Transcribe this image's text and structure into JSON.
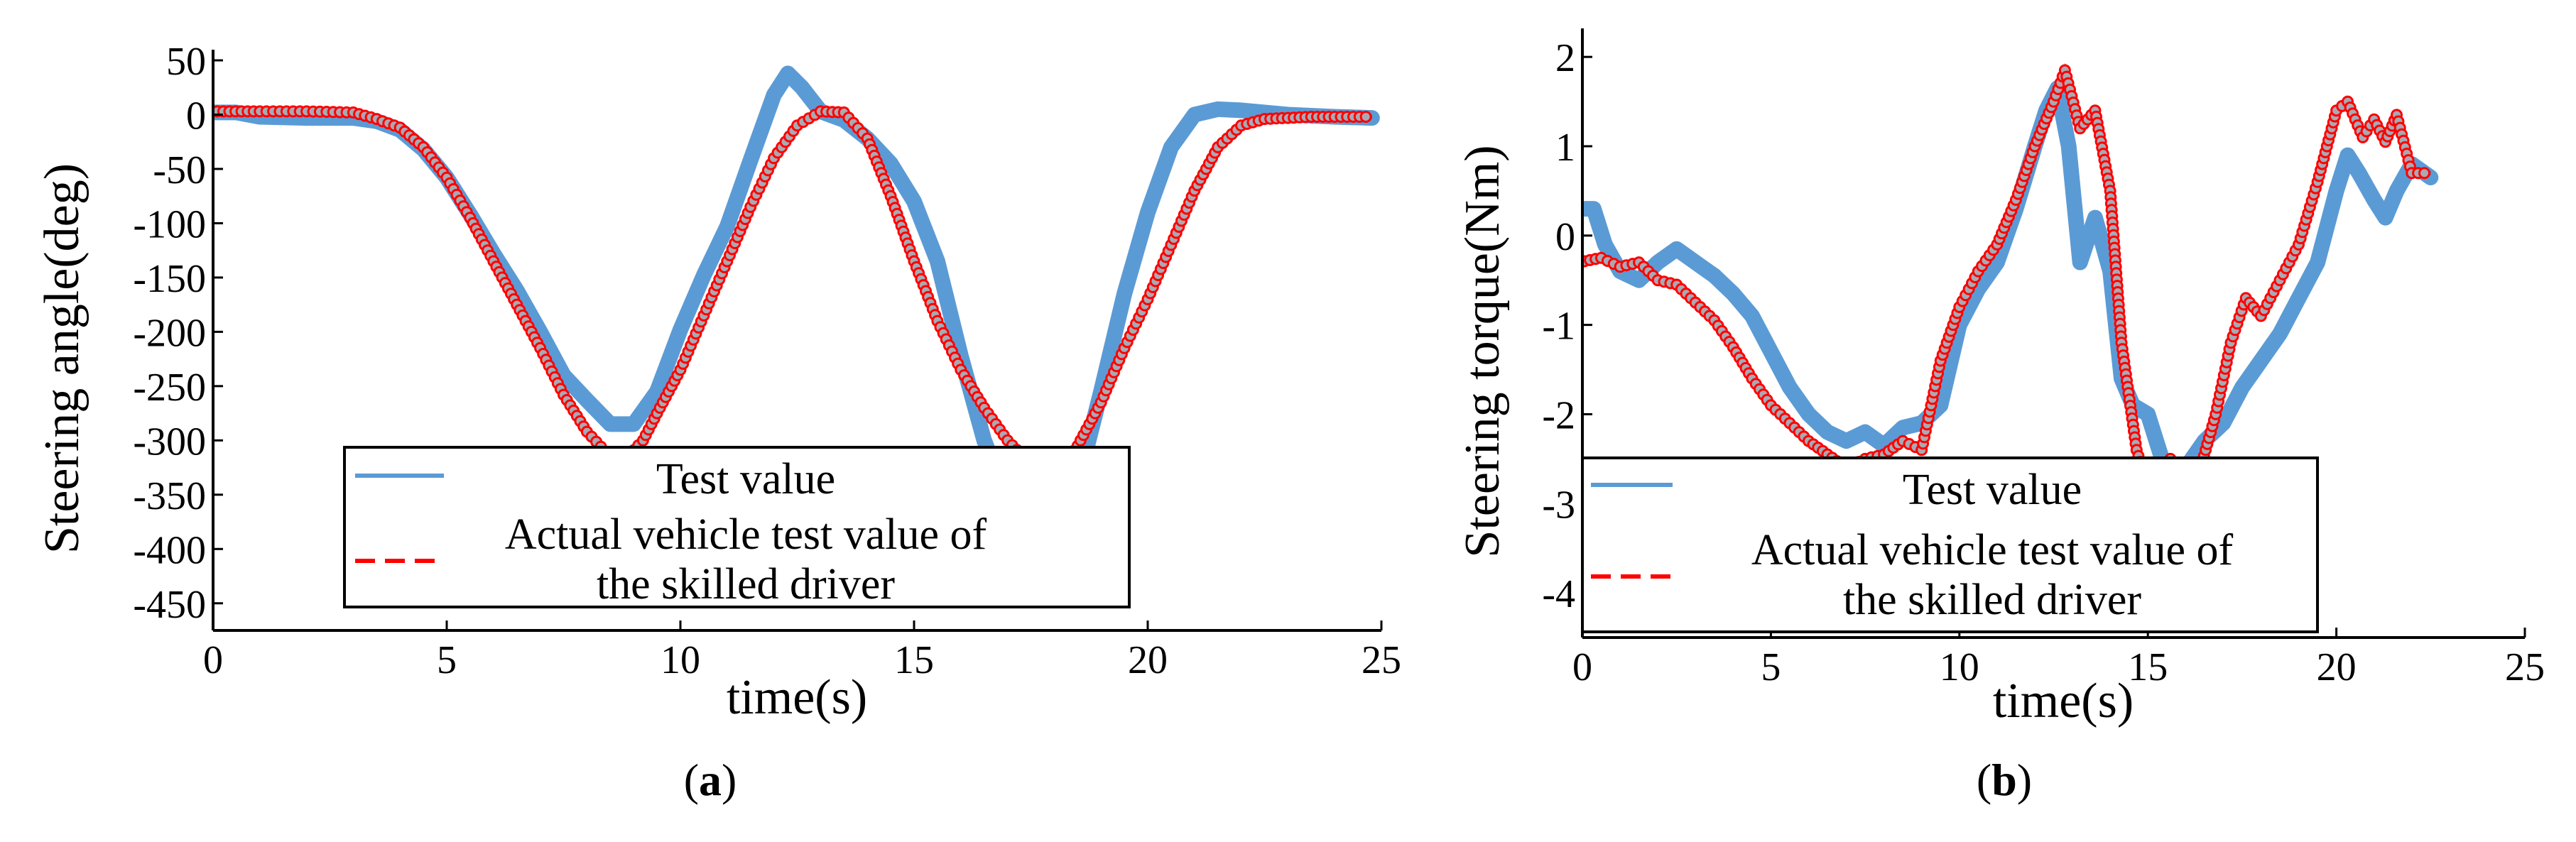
{
  "colors": {
    "test": "#5b9bd5",
    "skilled": "#ff0000",
    "marker_fill": "#a9a9b3",
    "axis": "#000000"
  },
  "chart_data": [
    {
      "type": "line",
      "panel_label": {
        "open": "(",
        "letter": "a",
        "close": ")"
      },
      "xlabel": "time(s)",
      "ylabel": "Steering angle(deg)",
      "xlim": [
        0,
        25
      ],
      "ylim": [
        -475,
        50
      ],
      "xticks": [
        0,
        5,
        10,
        15,
        20,
        25
      ],
      "yticks": [
        50,
        0,
        -50,
        -100,
        -150,
        -200,
        -250,
        -300,
        -350,
        -400,
        -450
      ],
      "grid": false,
      "legend": {
        "placement": "bottom-center",
        "entries": [
          {
            "label": [
              "Test value"
            ],
            "series": 0
          },
          {
            "label": [
              "Actual vehicle test value of",
              "the skilled driver"
            ],
            "series": 1
          }
        ]
      },
      "series": [
        {
          "name": "Test value",
          "style": "solid",
          "points": [
            [
              -0.3,
              2
            ],
            [
              0.5,
              2
            ],
            [
              1,
              -2
            ],
            [
              2,
              -3
            ],
            [
              3,
              -3
            ],
            [
              3.5,
              -6
            ],
            [
              4,
              -14
            ],
            [
              4.5,
              -32
            ],
            [
              5,
              -58
            ],
            [
              5.5,
              -92
            ],
            [
              6,
              -128
            ],
            [
              6.5,
              -162
            ],
            [
              7,
              -200
            ],
            [
              7.5,
              -240
            ],
            [
              8,
              -263
            ],
            [
              8.5,
              -285
            ],
            [
              9,
              -285
            ],
            [
              9.5,
              -255
            ],
            [
              10,
              -198
            ],
            [
              10.5,
              -148
            ],
            [
              11,
              -103
            ],
            [
              11.5,
              -42
            ],
            [
              12,
              18
            ],
            [
              12.3,
              38
            ],
            [
              12.6,
              25
            ],
            [
              13,
              3
            ],
            [
              13.5,
              -5
            ],
            [
              14,
              -22
            ],
            [
              14.5,
              -45
            ],
            [
              15,
              -80
            ],
            [
              15.5,
              -135
            ],
            [
              16,
              -222
            ],
            [
              16.5,
              -300
            ],
            [
              17,
              -355
            ],
            [
              17.5,
              -380
            ],
            [
              18,
              -378
            ],
            [
              18.5,
              -340
            ],
            [
              19,
              -255
            ],
            [
              19.5,
              -165
            ],
            [
              20,
              -90
            ],
            [
              20.5,
              -30
            ],
            [
              21,
              0
            ],
            [
              21.5,
              5
            ],
            [
              22,
              4
            ],
            [
              22.5,
              2
            ],
            [
              23,
              0
            ],
            [
              24,
              -2
            ],
            [
              24.8,
              -3
            ]
          ]
        },
        {
          "name": "Actual vehicle test value of the skilled driver",
          "style": "dashed-markers",
          "points": [
            [
              -0.3,
              3
            ],
            [
              1,
              3
            ],
            [
              2,
              3
            ],
            [
              3,
              2
            ],
            [
              3.5,
              -4
            ],
            [
              4,
              -12
            ],
            [
              4.5,
              -30
            ],
            [
              5,
              -58
            ],
            [
              5.5,
              -95
            ],
            [
              6,
              -135
            ],
            [
              6.5,
              -175
            ],
            [
              7,
              -215
            ],
            [
              7.5,
              -258
            ],
            [
              8,
              -292
            ],
            [
              8.5,
              -315
            ],
            [
              8.8,
              -318
            ],
            [
              9.2,
              -300
            ],
            [
              9.5,
              -275
            ],
            [
              10,
              -235
            ],
            [
              10.5,
              -185
            ],
            [
              11,
              -135
            ],
            [
              11.5,
              -85
            ],
            [
              12,
              -40
            ],
            [
              12.5,
              -10
            ],
            [
              13,
              3
            ],
            [
              13.5,
              2
            ],
            [
              14,
              -22
            ],
            [
              14.5,
              -75
            ],
            [
              15,
              -135
            ],
            [
              15.5,
              -190
            ],
            [
              16,
              -235
            ],
            [
              16.5,
              -270
            ],
            [
              17,
              -300
            ],
            [
              17.5,
              -322
            ],
            [
              17.8,
              -327
            ],
            [
              18.2,
              -320
            ],
            [
              18.5,
              -305
            ],
            [
              19,
              -265
            ],
            [
              19.5,
              -215
            ],
            [
              20,
              -170
            ],
            [
              20.5,
              -120
            ],
            [
              21,
              -70
            ],
            [
              21.5,
              -30
            ],
            [
              22,
              -10
            ],
            [
              22.5,
              -4
            ],
            [
              23,
              -3
            ],
            [
              23.5,
              -2
            ],
            [
              24,
              -2
            ],
            [
              24.8,
              -2
            ]
          ]
        }
      ]
    },
    {
      "type": "line",
      "panel_label": {
        "open": "(",
        "letter": "b",
        "close": ")"
      },
      "xlabel": "time(s)",
      "ylabel": "Steering torque(Nm)",
      "xlim": [
        0,
        25
      ],
      "ylim": [
        -4.5,
        2.2
      ],
      "xticks": [
        0,
        5,
        10,
        15,
        20,
        25
      ],
      "yticks": [
        2,
        1,
        0,
        -1,
        -2,
        -3,
        -4
      ],
      "grid": false,
      "legend": {
        "placement": "bottom-left",
        "entries": [
          {
            "label": [
              "Test value"
            ],
            "series": 0
          },
          {
            "label": [
              "Actual vehicle test value of",
              "the skilled driver"
            ],
            "series": 1
          }
        ]
      },
      "series": [
        {
          "name": "Test value",
          "style": "solid",
          "points": [
            [
              -0.1,
              0.3
            ],
            [
              0.3,
              0.3
            ],
            [
              0.6,
              -0.1
            ],
            [
              1,
              -0.4
            ],
            [
              1.5,
              -0.5
            ],
            [
              2,
              -0.3
            ],
            [
              2.5,
              -0.15
            ],
            [
              3,
              -0.3
            ],
            [
              3.5,
              -0.45
            ],
            [
              4,
              -0.65
            ],
            [
              4.5,
              -0.9
            ],
            [
              5,
              -1.3
            ],
            [
              5.5,
              -1.7
            ],
            [
              6,
              -2.0
            ],
            [
              6.5,
              -2.2
            ],
            [
              7,
              -2.3
            ],
            [
              7.5,
              -2.2
            ],
            [
              8,
              -2.35
            ],
            [
              8.5,
              -2.15
            ],
            [
              9,
              -2.1
            ],
            [
              9.5,
              -1.9
            ],
            [
              10,
              -1.0
            ],
            [
              10.5,
              -0.6
            ],
            [
              11,
              -0.3
            ],
            [
              11.5,
              0.3
            ],
            [
              12,
              1.0
            ],
            [
              12.3,
              1.4
            ],
            [
              12.6,
              1.65
            ],
            [
              12.9,
              1.0
            ],
            [
              13.2,
              -0.3
            ],
            [
              13.6,
              0.2
            ],
            [
              14,
              -0.4
            ],
            [
              14.3,
              -1.6
            ],
            [
              14.6,
              -1.9
            ],
            [
              15,
              -2.0
            ],
            [
              15.3,
              -2.4
            ],
            [
              15.6,
              -2.8
            ],
            [
              16,
              -2.6
            ],
            [
              16.5,
              -2.3
            ],
            [
              17,
              -2.1
            ],
            [
              17.5,
              -1.7
            ],
            [
              18,
              -1.4
            ],
            [
              18.5,
              -1.1
            ],
            [
              19,
              -0.7
            ],
            [
              19.5,
              -0.3
            ],
            [
              20,
              0.5
            ],
            [
              20.3,
              0.9
            ],
            [
              20.6,
              0.7
            ],
            [
              21,
              0.4
            ],
            [
              21.3,
              0.2
            ],
            [
              21.6,
              0.5
            ],
            [
              22,
              0.8
            ],
            [
              22.5,
              0.65
            ]
          ]
        },
        {
          "name": "Actual vehicle test value of the skilled driver",
          "style": "dashed-markers",
          "points": [
            [
              -0.1,
              -0.3
            ],
            [
              0.5,
              -0.25
            ],
            [
              1,
              -0.35
            ],
            [
              1.5,
              -0.3
            ],
            [
              2,
              -0.5
            ],
            [
              2.5,
              -0.55
            ],
            [
              3,
              -0.75
            ],
            [
              3.5,
              -0.95
            ],
            [
              4,
              -1.25
            ],
            [
              4.5,
              -1.6
            ],
            [
              5,
              -1.9
            ],
            [
              5.5,
              -2.1
            ],
            [
              6,
              -2.3
            ],
            [
              6.5,
              -2.45
            ],
            [
              7,
              -2.6
            ],
            [
              7.5,
              -2.5
            ],
            [
              8,
              -2.45
            ],
            [
              8.5,
              -2.3
            ],
            [
              9,
              -2.4
            ],
            [
              9.5,
              -1.4
            ],
            [
              10,
              -0.8
            ],
            [
              10.5,
              -0.4
            ],
            [
              11,
              -0.1
            ],
            [
              11.5,
              0.4
            ],
            [
              12,
              1.0
            ],
            [
              12.5,
              1.5
            ],
            [
              12.8,
              1.85
            ],
            [
              13.2,
              1.2
            ],
            [
              13.6,
              1.4
            ],
            [
              14,
              0.5
            ],
            [
              14.3,
              -1.2
            ],
            [
              14.7,
              -2.4
            ],
            [
              15,
              -2.8
            ],
            [
              15.3,
              -3.05
            ],
            [
              15.6,
              -2.5
            ],
            [
              16,
              -2.9
            ],
            [
              16.4,
              -2.6
            ],
            [
              16.8,
              -2.0
            ],
            [
              17.2,
              -1.2
            ],
            [
              17.6,
              -0.7
            ],
            [
              18,
              -0.9
            ],
            [
              18.5,
              -0.5
            ],
            [
              19,
              -0.1
            ],
            [
              19.5,
              0.6
            ],
            [
              20,
              1.4
            ],
            [
              20.3,
              1.5
            ],
            [
              20.7,
              1.1
            ],
            [
              21,
              1.3
            ],
            [
              21.3,
              1.05
            ],
            [
              21.6,
              1.35
            ],
            [
              22,
              0.7
            ],
            [
              22.5,
              0.7
            ]
          ]
        }
      ]
    }
  ]
}
